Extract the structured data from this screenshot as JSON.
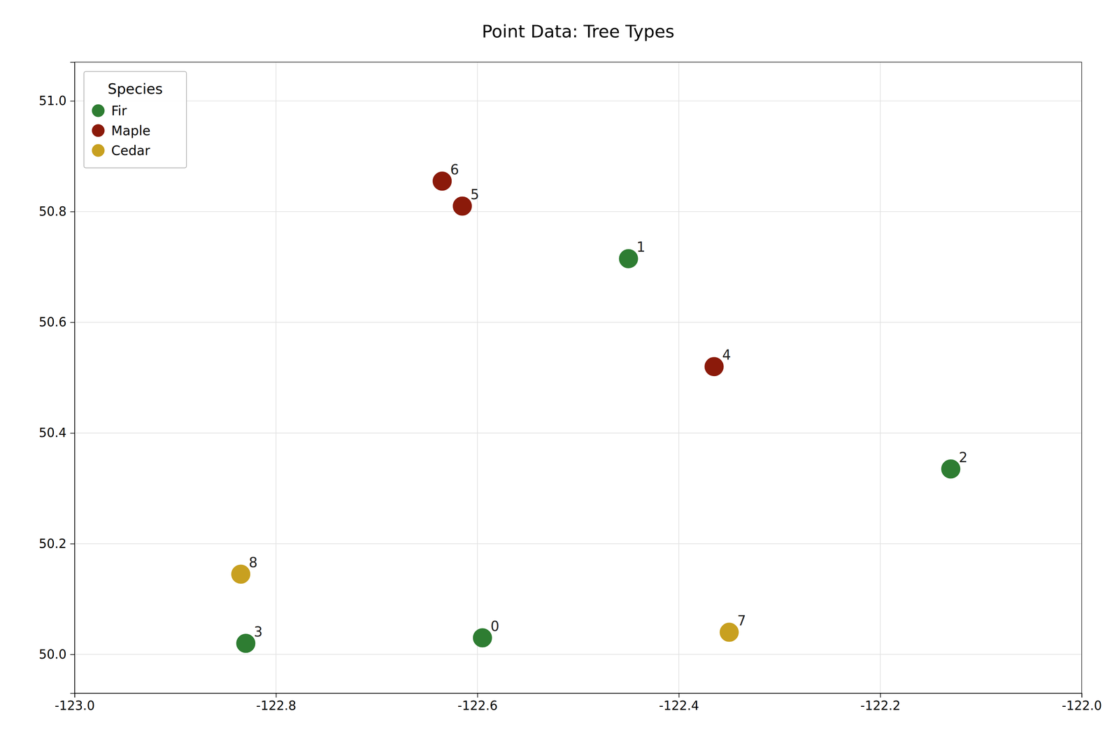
{
  "chart_data": {
    "type": "scatter",
    "title": "Point Data: Tree Types",
    "xlim": [
      -123.0,
      -122.0
    ],
    "ylim": [
      49.93,
      51.07
    ],
    "xticks": [
      {
        "value": -123.0,
        "label": "-123.0"
      },
      -122.8,
      -122.6,
      -122.4,
      -122.2,
      {
        "value": -122.0,
        "label": "-122.0"
      }
    ],
    "yticks": [
      {
        "value": 50.0,
        "label": "50.0"
      },
      50.2,
      50.4,
      50.6,
      50.8,
      {
        "value": 51.0,
        "label": "51.0"
      }
    ],
    "grid": true,
    "legend": "top-left",
    "legend_title": "Species",
    "series": [
      {
        "name": "Fir",
        "color": "#2e7d32",
        "x": [
          -122.595,
          -122.45,
          -122.13,
          -122.83
        ],
        "values": [
          50.03,
          50.715,
          50.335,
          50.02
        ],
        "labels": [
          "0",
          "1",
          "2",
          "3"
        ]
      },
      {
        "name": "Maple",
        "color": "#8b1a0a",
        "x": [
          -122.365,
          -122.615,
          -122.635
        ],
        "values": [
          50.52,
          50.81,
          50.855
        ],
        "labels": [
          "4",
          "5",
          "6"
        ]
      },
      {
        "name": "Cedar",
        "color": "#c8a020",
        "x": [
          -122.35,
          -122.835
        ],
        "values": [
          50.04,
          50.145
        ],
        "labels": [
          "7",
          "8"
        ]
      }
    ]
  }
}
